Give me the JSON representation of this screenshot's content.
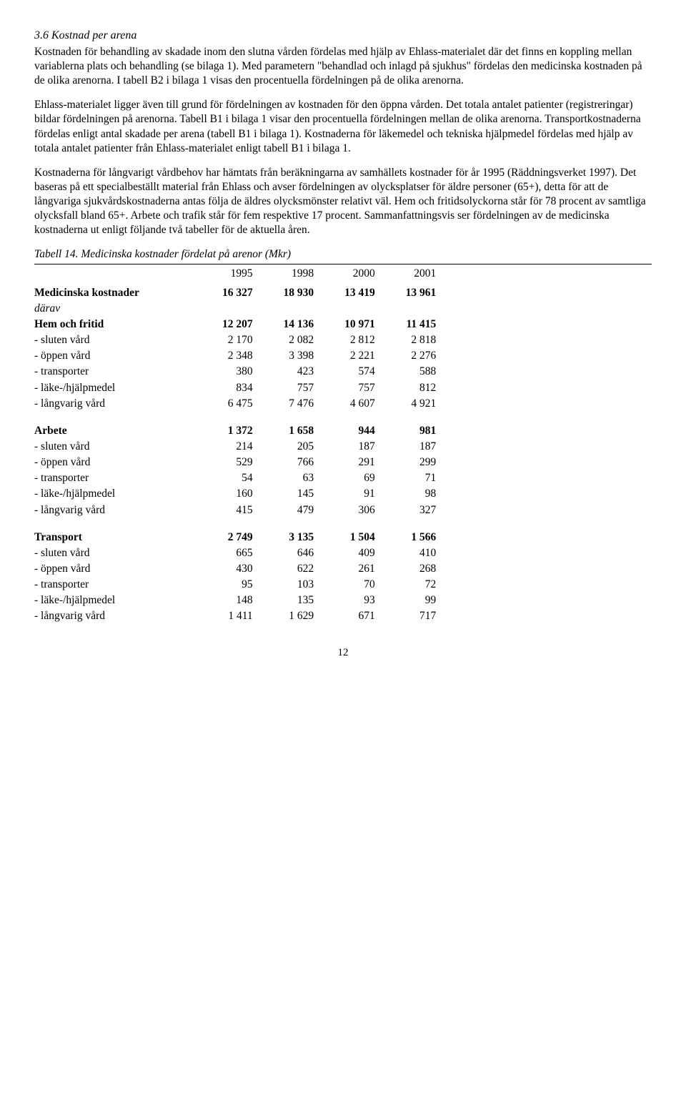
{
  "section": {
    "heading": "3.6 Kostnad per arena",
    "p1": "Kostnaden för behandling av skadade inom den slutna vården fördelas med hjälp av Ehlass-materialet där det finns en koppling mellan variablerna plats och behandling (se bilaga 1). Med parametern \"behandlad och inlagd på sjukhus\" fördelas den medicinska kostnaden på de olika arenorna. I tabell B2 i bilaga 1 visas den procentuella fördelningen på de olika arenorna.",
    "p2": "Ehlass-materialet ligger även till grund för fördelningen av kostnaden för den öppna vården. Det totala antalet patienter (registreringar) bildar fördelningen på arenorna. Tabell B1 i bilaga 1 visar den procentuella fördelningen mellan de olika arenorna. Transportkostnaderna fördelas enligt antal skadade per arena (tabell B1 i bilaga 1). Kostnaderna för läkemedel och tekniska hjälpmedel fördelas med hjälp av totala antalet patienter från Ehlass-materialet enligt tabell B1 i bilaga 1.",
    "p3": "Kostnaderna för långvarigt vårdbehov har hämtats från beräkningarna av samhällets kostnader för år 1995 (Räddningsverket 1997). Det baseras på ett specialbeställt material från Ehlass och avser fördelningen av olycksplatser för äldre personer (65+), detta för att de långvariga sjukvårdskostnaderna antas följa de äldres olycksmönster relativt väl. Hem och fritidsolyckorna står för 78 procent av samtliga olycksfall bland 65+. Arbete och trafik står för fem respektive 17 procent. Sammanfattningsvis ser fördelningen av de medicinska kostnaderna ut enligt följande två tabeller för de aktuella åren."
  },
  "table": {
    "caption": "Tabell 14. Medicinska kostnader fördelat på arenor (Mkr)",
    "years": [
      "1995",
      "1998",
      "2000",
      "2001"
    ],
    "darav_label": "därav",
    "row_labels": {
      "med": "Medicinska kostnader",
      "hem": "Hem och fritid",
      "arbete": "Arbete",
      "transport": "Transport",
      "sluten": " - sluten vård",
      "oppen": " - öppen vård",
      "transp": " - transporter",
      "lake": " - läke-/hjälpmedel",
      "lang": " - långvarig vård"
    },
    "groups": {
      "med": [
        "16 327",
        "18 930",
        "13 419",
        "13 961"
      ],
      "hem": [
        "12 207",
        "14 136",
        "10 971",
        "11 415"
      ],
      "hem_rows": [
        [
          "2 170",
          "2 082",
          "2 812",
          "2 818"
        ],
        [
          "2 348",
          "3 398",
          "2 221",
          "2 276"
        ],
        [
          "380",
          "423",
          "574",
          "588"
        ],
        [
          "834",
          "757",
          "757",
          "812"
        ],
        [
          "6 475",
          "7 476",
          "4 607",
          "4 921"
        ]
      ],
      "arbete": [
        "1 372",
        "1 658",
        "944",
        "981"
      ],
      "arbete_rows": [
        [
          "214",
          "205",
          "187",
          "187"
        ],
        [
          "529",
          "766",
          "291",
          "299"
        ],
        [
          "54",
          "63",
          "69",
          "71"
        ],
        [
          "160",
          "145",
          "91",
          "98"
        ],
        [
          "415",
          "479",
          "306",
          "327"
        ]
      ],
      "transport": [
        "2 749",
        "3 135",
        "1 504",
        "1 566"
      ],
      "transport_rows": [
        [
          "665",
          "646",
          "409",
          "410"
        ],
        [
          "430",
          "622",
          "261",
          "268"
        ],
        [
          "95",
          "103",
          "70",
          "72"
        ],
        [
          "148",
          "135",
          "93",
          "99"
        ],
        [
          "1 411",
          "1 629",
          "671",
          "717"
        ]
      ]
    }
  },
  "page_number": "12"
}
